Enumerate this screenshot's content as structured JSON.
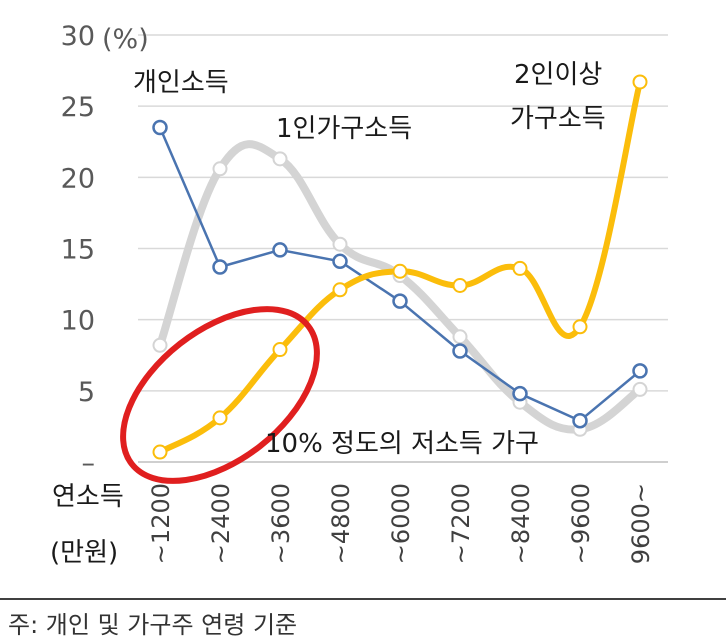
{
  "chart_data": {
    "type": "line",
    "ylabel_unit": "(%)",
    "xlabel_line1": "연소득",
    "xlabel_line2": "(만원)",
    "yticks": [
      "–",
      "5",
      "10",
      "15",
      "20",
      "25",
      "30"
    ],
    "ylim": [
      0,
      30
    ],
    "grid": true,
    "categories": [
      "~1200",
      "~2400",
      "~3600",
      "~4800",
      "~6000",
      "~7200",
      "~8400",
      "~9600",
      "9600~"
    ],
    "series": [
      {
        "name": "개인소득",
        "color": "#4a74b0",
        "values": [
          23.5,
          13.7,
          14.9,
          14.1,
          11.3,
          7.8,
          4.8,
          2.9,
          6.4
        ]
      },
      {
        "name": "1인가구소득",
        "color": "#d4d4d4",
        "values": [
          8.2,
          20.6,
          21.3,
          15.3,
          13.1,
          8.8,
          4.2,
          2.3,
          5.1
        ]
      },
      {
        "name_line1": "2인이상",
        "name_line2": "가구소득",
        "color": "#fbbd0b",
        "values": [
          0.7,
          3.1,
          7.9,
          12.1,
          13.4,
          12.4,
          13.6,
          9.5,
          26.7
        ]
      }
    ],
    "annotation": "10% 정도의 저소득 가구",
    "annotation_color": "#e01f1f"
  },
  "note": "주: 개인 및 가구주 연령 기준"
}
